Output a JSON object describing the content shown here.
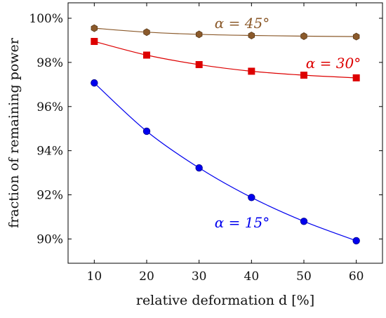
{
  "chart_data": {
    "type": "line",
    "title": "",
    "xlabel": "relative deformation d [%]",
    "ylabel": "fraction of remaining power",
    "x": [
      10,
      20,
      30,
      40,
      50,
      60
    ],
    "x_ticks": [
      "10",
      "20",
      "30",
      "40",
      "50",
      "60"
    ],
    "xlim": [
      5,
      65
    ],
    "ylim": [
      88.9,
      100.7
    ],
    "y_ticks": [
      {
        "value": 90,
        "label": "90%"
      },
      {
        "value": 92,
        "label": "92%"
      },
      {
        "value": 94,
        "label": "94%"
      },
      {
        "value": 96,
        "label": "96%"
      },
      {
        "value": 98,
        "label": "98%"
      },
      {
        "value": 100,
        "label": "100%"
      }
    ],
    "grid": false,
    "series": [
      {
        "name": "α = 45°",
        "color": "#8b5a2b",
        "marker": "hexagon",
        "values": [
          99.55,
          99.37,
          99.27,
          99.22,
          99.19,
          99.17
        ]
      },
      {
        "name": "α = 30°",
        "color": "#dd0000",
        "marker": "square",
        "values": [
          98.95,
          98.33,
          97.9,
          97.6,
          97.42,
          97.3
        ]
      },
      {
        "name": "α = 15°",
        "color": "#0000ee",
        "marker": "circle",
        "values": [
          97.07,
          94.88,
          93.22,
          91.88,
          90.8,
          89.92
        ]
      }
    ]
  }
}
